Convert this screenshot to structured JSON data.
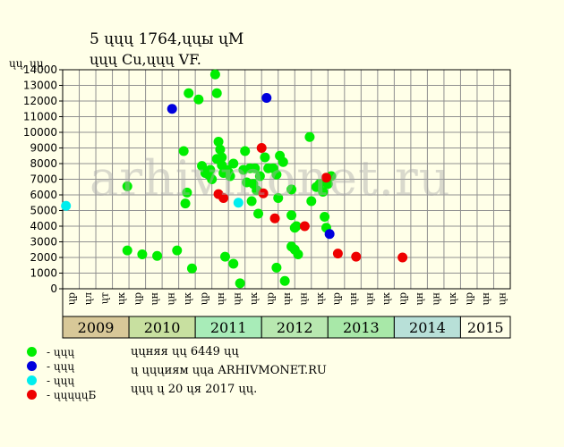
{
  "header": {
    "line1": "5 ųųų 1764,ųųы ųМ",
    "line2": "ųųų Cu,ųųų VF."
  },
  "watermark": "arhivmonet.ru",
  "legend": [
    {
      "label": "- ųųų",
      "color": "#00ee00"
    },
    {
      "label": "- ųųų",
      "color": "#0000dd"
    },
    {
      "label": "- ųųų",
      "color": "#00eeee"
    },
    {
      "label": "- ųųųųųБ",
      "color": "#ee0000"
    }
  ],
  "notes": [
    "ųųняя ųų 6449 ųų",
    "ų ųųųиям ųųа ARHIVMONET.RU",
    "ųųų ų 20 ųя 2017 ųų."
  ],
  "chart_data": {
    "type": "scatter",
    "ylabel": "ųų, ųų",
    "ylim": [
      0,
      14000
    ],
    "yticks": [
      0,
      1000,
      2000,
      3000,
      4000,
      5000,
      6000,
      7000,
      8000,
      9000,
      10000,
      11000,
      12000,
      13000,
      14000
    ],
    "xlim": [
      0,
      27
    ],
    "x_tick_labels": [
      "ųр",
      "ųл",
      "ųт",
      "ųк",
      "ųр",
      "ųн",
      "ųн",
      "ųк",
      "ųр",
      "ųн",
      "ųн",
      "ųк",
      "ųр",
      "ųн",
      "ųн",
      "ųк",
      "ųр",
      "ųн",
      "ųн",
      "ųк",
      "ųр",
      "ųн",
      "ųн",
      "ųк",
      "ųр",
      "ųн",
      "ųн"
    ],
    "years": [
      {
        "label": "2009",
        "start": 0,
        "end": 4,
        "color": "#d8c898"
      },
      {
        "label": "2010",
        "start": 4,
        "end": 8,
        "color": "#c8e0a0"
      },
      {
        "label": "2011",
        "start": 8,
        "end": 12,
        "color": "#a8ecb8"
      },
      {
        "label": "2012",
        "start": 12,
        "end": 16,
        "color": "#b8e8b0"
      },
      {
        "label": "2013",
        "start": 16,
        "end": 20,
        "color": "#a8e8a8"
      },
      {
        "label": "2014",
        "start": 20,
        "end": 24,
        "color": "#b8e0d8"
      },
      {
        "label": "2015",
        "start": 24,
        "end": 27,
        "color": "#ffffe8"
      }
    ],
    "grid": true,
    "series": [
      {
        "color": "#00ee00",
        "points": [
          [
            3.9,
            6550
          ],
          [
            3.9,
            2450
          ],
          [
            4.8,
            2200
          ],
          [
            5.7,
            2100
          ],
          [
            6.9,
            2450
          ],
          [
            7.3,
            8800
          ],
          [
            7.4,
            5450
          ],
          [
            7.5,
            6150
          ],
          [
            7.6,
            12500
          ],
          [
            7.8,
            1300
          ],
          [
            8.2,
            12100
          ],
          [
            8.4,
            7850
          ],
          [
            8.6,
            7400
          ],
          [
            8.8,
            7300
          ],
          [
            8.9,
            7600
          ],
          [
            9.0,
            7000
          ],
          [
            9.2,
            13700
          ],
          [
            9.3,
            12500
          ],
          [
            9.3,
            8300
          ],
          [
            9.4,
            9400
          ],
          [
            9.5,
            8900
          ],
          [
            9.6,
            8400
          ],
          [
            9.6,
            7900
          ],
          [
            9.7,
            7400
          ],
          [
            9.8,
            2050
          ],
          [
            9.9,
            7600
          ],
          [
            10.0,
            7450
          ],
          [
            10.1,
            7200
          ],
          [
            10.3,
            8000
          ],
          [
            10.3,
            1600
          ],
          [
            10.7,
            350
          ],
          [
            10.9,
            7600
          ],
          [
            11.0,
            8800
          ],
          [
            11.1,
            6800
          ],
          [
            11.3,
            7700
          ],
          [
            11.4,
            5600
          ],
          [
            11.5,
            6700
          ],
          [
            11.6,
            7700
          ],
          [
            11.7,
            6300
          ],
          [
            11.8,
            4800
          ],
          [
            11.9,
            7200
          ],
          [
            12.2,
            8400
          ],
          [
            12.4,
            7700
          ],
          [
            12.7,
            7700
          ],
          [
            12.9,
            7300
          ],
          [
            12.9,
            1350
          ],
          [
            13.1,
            8500
          ],
          [
            13.0,
            5800
          ],
          [
            13.3,
            8100
          ],
          [
            13.4,
            500
          ],
          [
            13.8,
            6350
          ],
          [
            13.8,
            4700
          ],
          [
            13.8,
            2700
          ],
          [
            14.0,
            3900
          ],
          [
            14.0,
            2500
          ],
          [
            14.2,
            2200
          ],
          [
            14.1,
            4000
          ],
          [
            14.9,
            9700
          ],
          [
            15.0,
            5600
          ],
          [
            15.3,
            6500
          ],
          [
            15.5,
            6700
          ],
          [
            15.7,
            6200
          ],
          [
            15.8,
            4600
          ],
          [
            15.9,
            3900
          ],
          [
            16.0,
            6700
          ],
          [
            16.2,
            7200
          ]
        ]
      },
      {
        "color": "#0000dd",
        "points": [
          [
            6.6,
            11500
          ],
          [
            12.3,
            12200
          ],
          [
            16.1,
            3500
          ]
        ]
      },
      {
        "color": "#00eeee",
        "points": [
          [
            0.2,
            5300
          ],
          [
            10.6,
            5500
          ]
        ]
      },
      {
        "color": "#ee0000",
        "points": [
          [
            9.4,
            6050
          ],
          [
            9.7,
            5800
          ],
          [
            12.0,
            9000
          ],
          [
            12.1,
            6100
          ],
          [
            12.8,
            4500
          ],
          [
            14.6,
            4000
          ],
          [
            15.9,
            7100
          ],
          [
            16.6,
            2250
          ],
          [
            17.7,
            2050
          ],
          [
            20.5,
            2000
          ]
        ]
      }
    ]
  }
}
